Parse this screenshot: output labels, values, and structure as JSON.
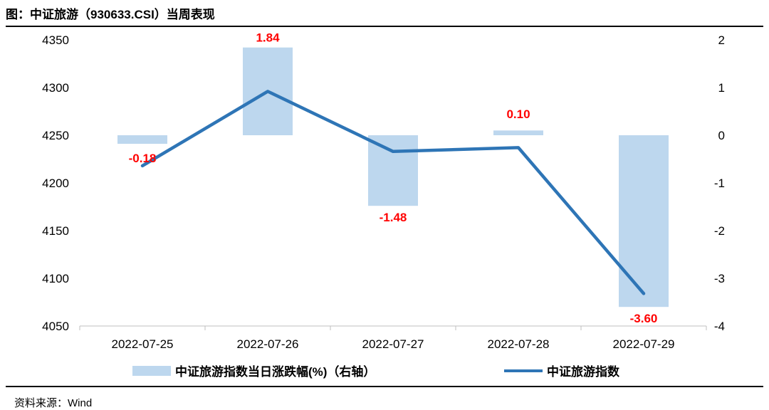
{
  "header": {
    "title": "图：中证旅游（930633.CSI）当周表现"
  },
  "footer": {
    "source": "资料来源：Wind"
  },
  "colors": {
    "bar": "#bdd7ee",
    "line": "#2e75b6",
    "bar_label": "#ff0000",
    "axis": "#bfbfbf"
  },
  "chart_data": {
    "type": "bar",
    "categories": [
      "2022-07-25",
      "2022-07-26",
      "2022-07-27",
      "2022-07-28",
      "2022-07-29"
    ],
    "series": [
      {
        "name": "中证旅游指数当日涨跌幅(%)（右轴）",
        "kind": "bar",
        "axis": "right",
        "values": [
          -0.18,
          1.84,
          -1.48,
          0.1,
          -3.6
        ],
        "labels": [
          "-0.18",
          "1.84",
          "-1.48",
          "0.10",
          "-3.60"
        ]
      },
      {
        "name": "中证旅游指数",
        "kind": "line",
        "axis": "left",
        "values": [
          4218,
          4296,
          4233,
          4237,
          4084
        ]
      }
    ],
    "y_left": {
      "min": 4050,
      "max": 4350,
      "ticks": [
        "4050",
        "4100",
        "4150",
        "4200",
        "4250",
        "4300",
        "4350"
      ]
    },
    "y_right": {
      "min": -4,
      "max": 2,
      "ticks": [
        "-4",
        "-3",
        "-2",
        "-1",
        "0",
        "1",
        "2"
      ]
    },
    "legend_position": "bottom",
    "grid": false
  }
}
